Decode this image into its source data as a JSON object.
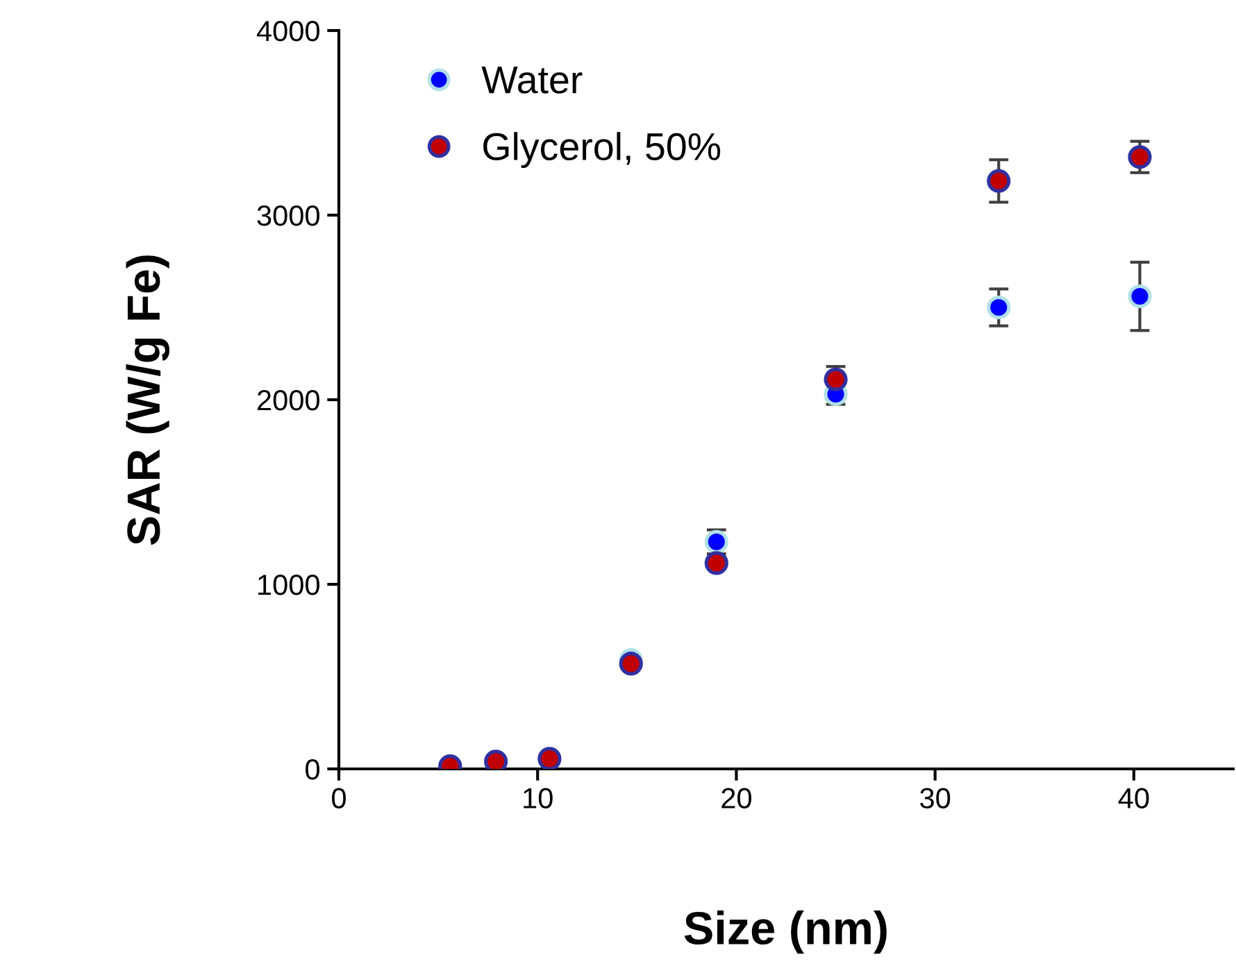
{
  "chart_data": {
    "type": "scatter",
    "xlabel": "Size (nm)",
    "ylabel": "SAR (W/g Fe)",
    "xlim": [
      0,
      45
    ],
    "xticks": [
      0,
      10,
      20,
      30,
      40
    ],
    "ylim": [
      0,
      4000
    ],
    "yticks": [
      0,
      1000,
      2000,
      3000,
      4000
    ],
    "grid": false,
    "legend": "top left",
    "marker": "circle",
    "series": [
      {
        "name": "Water",
        "color": "#0000ff",
        "x": [
          14.7,
          19.0,
          25.0,
          33.2,
          40.3
        ],
        "values": [
          590,
          1230,
          2030,
          2500,
          2560
        ],
        "errors": [
          null,
          65,
          55,
          100,
          185
        ]
      },
      {
        "name": "Glycerol, 50%",
        "color": "#c00000",
        "x": [
          5.6,
          7.9,
          10.6,
          14.7,
          19.0,
          25.0,
          33.2,
          40.3
        ],
        "values": [
          15,
          40,
          55,
          570,
          1115,
          2110,
          3185,
          3315
        ],
        "errors": [
          null,
          null,
          null,
          null,
          null,
          70,
          115,
          85
        ]
      }
    ]
  }
}
